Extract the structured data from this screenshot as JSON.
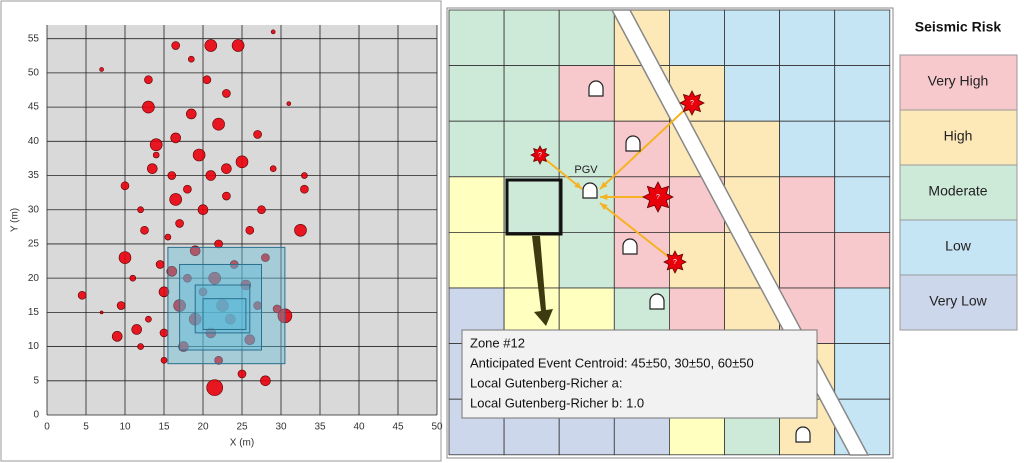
{
  "chart_data": {
    "type": "scatter",
    "x_label": "X (m)",
    "y_label": "Y (m)",
    "xlim": [
      0,
      50
    ],
    "ylim": [
      0,
      57
    ],
    "xticks": [
      0,
      5,
      10,
      15,
      20,
      25,
      30,
      35,
      40,
      45,
      50
    ],
    "yticks": [
      0,
      5,
      10,
      15,
      20,
      25,
      30,
      35,
      40,
      45,
      50,
      55
    ],
    "grid": true,
    "color": "#e8000b",
    "x": [
      4.5,
      7,
      9,
      9.5,
      10,
      10,
      11,
      11.5,
      12,
      12,
      12.5,
      13,
      13,
      13,
      13.5,
      14,
      14,
      14.5,
      15,
      15,
      15,
      15.5,
      16,
      16,
      16.5,
      16.5,
      16.5,
      17,
      17,
      17.5,
      18,
      18,
      18.5,
      18.5,
      19,
      19,
      19.5,
      20,
      20,
      20.5,
      21.5,
      21,
      21,
      21,
      21.5,
      22,
      22,
      22,
      22.5,
      23,
      23,
      23,
      23.5,
      24,
      24.5,
      25,
      25,
      25.5,
      26,
      26,
      27,
      27,
      27.5,
      28,
      28,
      29,
      29.5,
      30.5,
      32.5,
      33,
      33,
      31,
      29,
      7
    ],
    "y": [
      17.5,
      15,
      11.5,
      16,
      23,
      33.5,
      20,
      12.5,
      10,
      30,
      27,
      14,
      45,
      49,
      36,
      38,
      39.5,
      22,
      8,
      12,
      18,
      26,
      21,
      35,
      31.5,
      40.5,
      54,
      16,
      28,
      10,
      20,
      33,
      44,
      52,
      14,
      24,
      38,
      18,
      30,
      49,
      4,
      12,
      35,
      54,
      20,
      25,
      42.5,
      8,
      16,
      32,
      47,
      36,
      14,
      22,
      54,
      6,
      37,
      19,
      27,
      11,
      16,
      41,
      30,
      5,
      23,
      36,
      15.5,
      14.5,
      27,
      33,
      35,
      45.5,
      56,
      50.5
    ],
    "sizes": [
      4,
      1.5,
      5,
      4,
      6,
      4,
      3,
      5,
      3,
      3,
      4,
      3,
      6,
      4,
      5,
      3,
      6,
      4,
      3,
      4,
      5,
      3,
      5,
      4,
      6,
      5,
      4,
      6,
      4,
      5,
      4,
      4,
      5,
      3,
      6,
      5,
      6,
      4,
      5,
      4,
      8,
      5,
      5,
      6,
      6,
      4,
      6,
      4,
      6,
      4,
      4,
      5,
      5,
      4,
      6,
      4,
      6,
      5,
      4,
      5,
      4,
      4,
      4,
      5,
      4,
      3,
      4,
      7,
      6,
      4,
      3,
      2,
      2,
      2
    ],
    "regions": [
      {
        "x0": 15.5,
        "x1": 30.5,
        "y0": 7.5,
        "y1": 24.5
      },
      {
        "x0": 17,
        "x1": 27.5,
        "y0": 9.5,
        "y1": 22
      },
      {
        "x0": 19,
        "x1": 26,
        "y0": 12,
        "y1": 19
      },
      {
        "x0": 20,
        "x1": 25.5,
        "y0": 12.5,
        "y1": 17
      }
    ]
  },
  "map": {
    "cell_colors": [
      [
        "#cde9d8",
        "#cde9d8",
        "#cde9d8",
        "#fde9b8",
        "#c5e5f5",
        "#c5e5f5",
        "#c5e5f5",
        "#c5e5f5"
      ],
      [
        "#cde9d8",
        "#cde9d8",
        "#f8c9cc",
        "#fde9b8",
        "#fde9b8",
        "#c5e5f5",
        "#c5e5f5",
        "#c5e5f5"
      ],
      [
        "#cde9d8",
        "#cde9d8",
        "#cde9d8",
        "#f8c9cc",
        "#fde9b8",
        "#fde9b8",
        "#c5e5f5",
        "#c5e5f5"
      ],
      [
        "#ffffc0",
        "#cde9d8",
        "#cde9d8",
        "#f8c9cc",
        "#f8c9cc",
        "#fde9b8",
        "#f8c9cc",
        "#c5e5f5"
      ],
      [
        "#ffffc0",
        "#ffffc0",
        "#cde9d8",
        "#f8c9cc",
        "#fde9b8",
        "#fde9b8",
        "#f8c9cc",
        "#f8c9cc"
      ],
      [
        "#cdd7ec",
        "#ffffc0",
        "#ffffc0",
        "#cde9d8",
        "#f8c9cc",
        "#fde9b8",
        "#f8c9cc",
        "#c5e5f5"
      ],
      [
        "#cdd7ec",
        "#cdd7ec",
        "#ffffc0",
        "#cde9d8",
        "#f8c9cc",
        "#fde9b8",
        "#fde9b8",
        "#c5e5f5"
      ],
      [
        "#cdd7ec",
        "#cdd7ec",
        "#cdd7ec",
        "#cdd7ec",
        "#ffffc0",
        "#cde9d8",
        "#fde9b8",
        "#c5e5f5"
      ]
    ],
    "pgv_label": "PGV",
    "star_label": "?",
    "info": [
      "Zone #12",
      "Anticipated Event Centroid:  45±50, 30±50, 60±50",
      "Local Gutenberg-Richer a:",
      "Local Gutenberg-Richer b: 1.0"
    ]
  },
  "legend": {
    "title": "Seismic Risk",
    "items": [
      {
        "label": "Very High",
        "color": "#f8c9cc"
      },
      {
        "label": "High",
        "color": "#fde9b8"
      },
      {
        "label": "Moderate",
        "color": "#cde9d8"
      },
      {
        "label": "Low",
        "color": "#c5e5f5"
      },
      {
        "label": "Very Low",
        "color": "#cdd7ec"
      }
    ]
  }
}
